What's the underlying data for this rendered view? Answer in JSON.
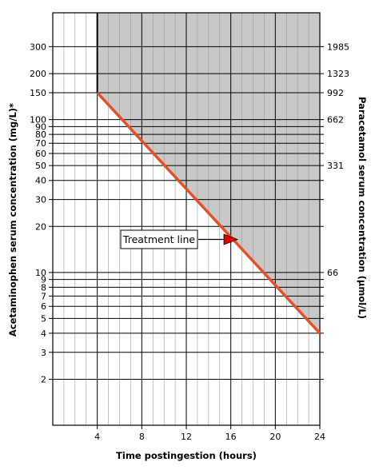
{
  "chart_data": {
    "type": "line",
    "xlabel": "Time postingestion (hours)",
    "ylabel": "Acetaminophen serum concentration (mg/L)*",
    "y2label": "Paracetamol serum concentration (µmol/L)",
    "x_range": [
      0,
      24
    ],
    "y_scale": "log",
    "y_range": [
      1,
      500
    ],
    "x_ticks": [
      4,
      8,
      12,
      16,
      20,
      24
    ],
    "y_ticks": [
      2,
      3,
      4,
      5,
      6,
      7,
      8,
      9,
      10,
      20,
      30,
      40,
      50,
      60,
      70,
      80,
      90,
      100,
      150,
      200,
      300
    ],
    "y2_ticks": [
      {
        "at": 300,
        "label": "1985"
      },
      {
        "at": 200,
        "label": "1323"
      },
      {
        "at": 150,
        "label": "992"
      },
      {
        "at": 100,
        "label": "662"
      },
      {
        "at": 50,
        "label": "331"
      },
      {
        "at": 10,
        "label": "66"
      }
    ],
    "series": [
      {
        "x": [
          4,
          24
        ],
        "y": [
          150,
          4
        ],
        "color": "#e0522a"
      }
    ],
    "shaded_region": {
      "description": "above treatment line from 4 h",
      "color": "#c8c8c8"
    },
    "grid": true,
    "annotation": {
      "text": "Treatment line",
      "arrow_color": "#e00000"
    }
  }
}
